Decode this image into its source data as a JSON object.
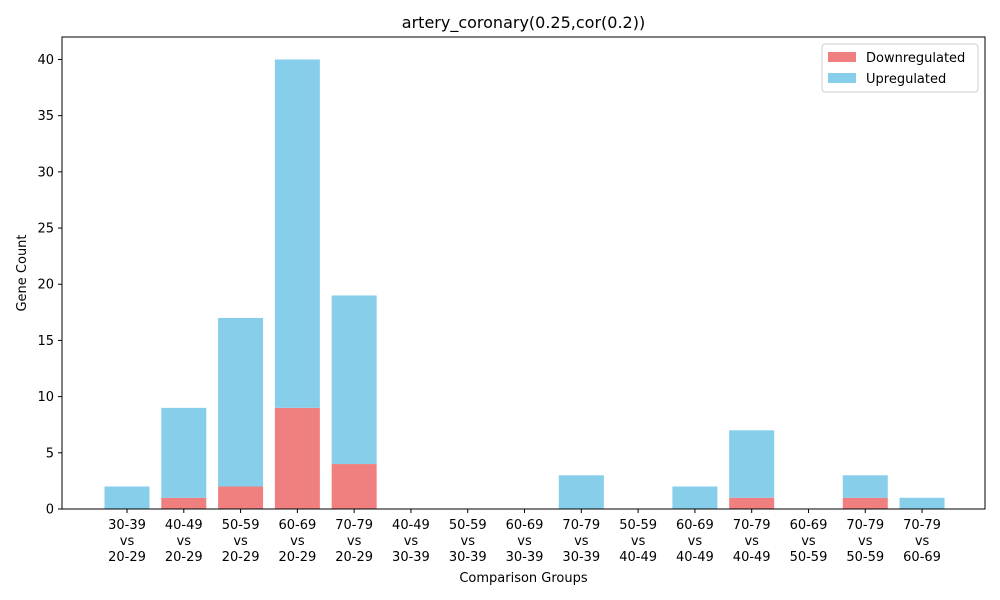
{
  "chart_data": {
    "type": "bar",
    "stacked": true,
    "title": "artery_coronary(0.25,cor(0.2))",
    "xlabel": "Comparison Groups",
    "ylabel": "Gene Count",
    "ylim": [
      0,
      42
    ],
    "yticks": [
      0,
      5,
      10,
      15,
      20,
      25,
      30,
      35,
      40
    ],
    "grid": false,
    "legend_position": "top-right",
    "categories": [
      [
        "30-39",
        "vs",
        "20-29"
      ],
      [
        "40-49",
        "vs",
        "20-29"
      ],
      [
        "50-59",
        "vs",
        "20-29"
      ],
      [
        "60-69",
        "vs",
        "20-29"
      ],
      [
        "70-79",
        "vs",
        "20-29"
      ],
      [
        "40-49",
        "vs",
        "30-39"
      ],
      [
        "50-59",
        "vs",
        "30-39"
      ],
      [
        "60-69",
        "vs",
        "30-39"
      ],
      [
        "70-79",
        "vs",
        "30-39"
      ],
      [
        "50-59",
        "vs",
        "40-49"
      ],
      [
        "60-69",
        "vs",
        "40-49"
      ],
      [
        "70-79",
        "vs",
        "40-49"
      ],
      [
        "60-69",
        "vs",
        "50-59"
      ],
      [
        "70-79",
        "vs",
        "50-59"
      ],
      [
        "70-79",
        "vs",
        "60-69"
      ]
    ],
    "series": [
      {
        "name": "Downregulated",
        "color": "#f08080",
        "values": [
          0,
          1,
          2,
          9,
          4,
          0,
          0,
          0,
          0,
          0,
          0,
          1,
          0,
          1,
          0
        ]
      },
      {
        "name": "Upregulated",
        "color": "#87ceeb",
        "values": [
          2,
          8,
          15,
          31,
          15,
          0,
          0,
          0,
          3,
          0,
          2,
          6,
          0,
          2,
          1
        ]
      }
    ]
  }
}
